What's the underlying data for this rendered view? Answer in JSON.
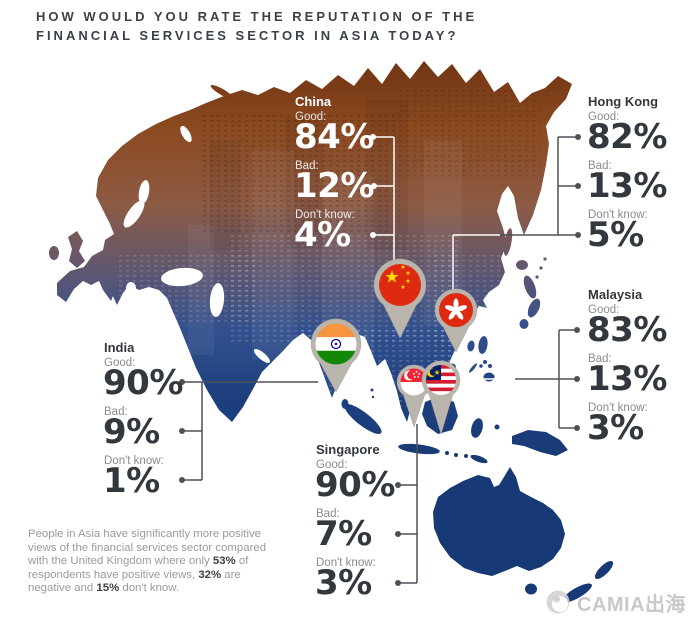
{
  "title": {
    "line1": "HOW WOULD YOU RATE THE REPUTATION OF THE",
    "line2": "FINANCIAL SERVICES SECTOR IN ASIA TODAY?"
  },
  "countries": [
    {
      "name": "China",
      "stats": [
        {
          "label": "Good:",
          "value": "84%"
        },
        {
          "label": "Bad:",
          "value": "12%"
        },
        {
          "label": "Don't know:",
          "value": "4%"
        }
      ]
    },
    {
      "name": "Hong Kong",
      "stats": [
        {
          "label": "Good:",
          "value": "82%"
        },
        {
          "label": "Bad:",
          "value": "13%"
        },
        {
          "label": "Don't know:",
          "value": "5%"
        }
      ]
    },
    {
      "name": "India",
      "stats": [
        {
          "label": "Good:",
          "value": "90%"
        },
        {
          "label": "Bad:",
          "value": "9%"
        },
        {
          "label": "Don't know:",
          "value": "1%"
        }
      ]
    },
    {
      "name": "Malaysia",
      "stats": [
        {
          "label": "Good:",
          "value": "83%"
        },
        {
          "label": "Bad:",
          "value": "13%"
        },
        {
          "label": "Don't know:",
          "value": "3%"
        }
      ]
    },
    {
      "name": "Singapore",
      "stats": [
        {
          "label": "Good:",
          "value": "90%"
        },
        {
          "label": "Bad:",
          "value": "7%"
        },
        {
          "label": "Don't know:",
          "value": "3%"
        }
      ]
    }
  ],
  "footnote": {
    "segments": [
      {
        "text": "People in Asia have significantly more positive views of the financial services sector compared with the United Kingdom where only ",
        "bold": false
      },
      {
        "text": "53%",
        "bold": true
      },
      {
        "text": " of respondents have positive views, ",
        "bold": false
      },
      {
        "text": "32%",
        "bold": true
      },
      {
        "text": " are negative and ",
        "bold": false
      },
      {
        "text": "15%",
        "bold": true
      },
      {
        "text": " don't know.",
        "bold": false
      }
    ]
  },
  "watermark": {
    "text": "CAMIA出海"
  },
  "colors": {
    "title": "#3b4148",
    "value_text": "#33383e",
    "label_text": "#8b8b8b",
    "connector": "#4d5156",
    "map_top": "#7b3a17",
    "map_bottom": "#1c3f7d",
    "pin": "#b9b4ac"
  },
  "chart_data": {
    "type": "table",
    "title": "How would you rate the reputation of the financial services sector in Asia today?",
    "unit": "%",
    "categories": [
      "China",
      "Hong Kong",
      "India",
      "Malaysia",
      "Singapore"
    ],
    "series": [
      {
        "name": "Good",
        "values": [
          84,
          82,
          90,
          83,
          90
        ]
      },
      {
        "name": "Bad",
        "values": [
          12,
          13,
          9,
          13,
          7
        ]
      },
      {
        "name": "Don't know",
        "values": [
          4,
          5,
          1,
          3,
          3
        ]
      }
    ],
    "annotation": "UK comparison: 53% positive, 32% negative, 15% don't know",
    "uk_comparison": {
      "positive": 53,
      "negative": 32,
      "dont_know": 15
    },
    "legend_position": "per-country callouts on map",
    "grid": false
  }
}
